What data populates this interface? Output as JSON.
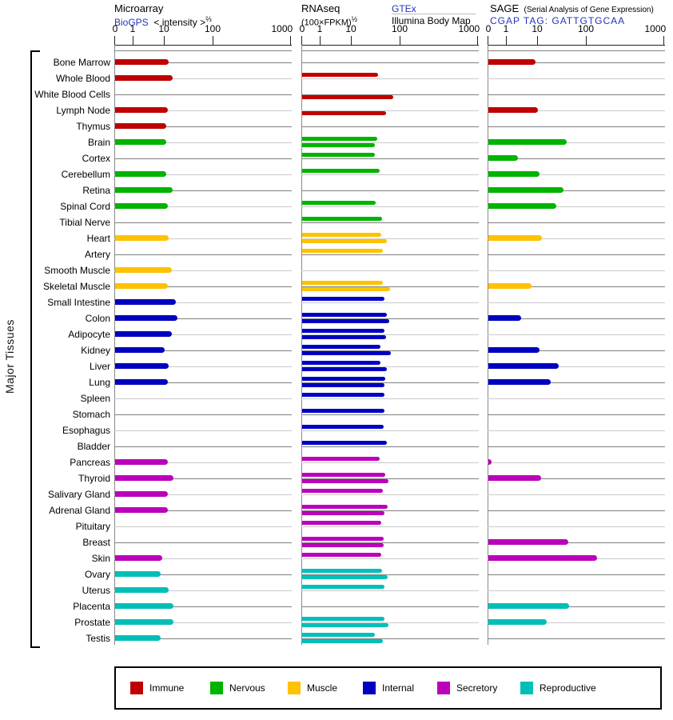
{
  "side_label": "Major Tissues",
  "header": {
    "microarray": {
      "title": "Microarray",
      "link": "BioGPS",
      "unit_prefix": "< intensity >",
      "unit_sup": "⅔"
    },
    "rnaseq": {
      "title": "RNAseq",
      "unit_prefix": "(100×FPKM)",
      "unit_sup": "½",
      "link": "GTEx",
      "sub_source": "Illumina Body Map"
    },
    "sage": {
      "title": "SAGE",
      "subtitle": "(Serial Analysis of Gene Expression)",
      "link": "CGAP TAG: GATTGTGCAA"
    }
  },
  "chart_data": {
    "type": "bar",
    "orientation": "horizontal",
    "axis": {
      "scale": "fifth-root (log-like), shared by all three panels",
      "ticks": [
        0,
        1,
        10,
        100,
        1000
      ],
      "tick_labels": [
        "0",
        "1",
        "10",
        "100",
        "1000"
      ]
    },
    "panels": [
      {
        "name": "Microarray",
        "source": "BioGPS",
        "unit": "< intensity >^(2/3)",
        "value_key": "microarray"
      },
      {
        "name": "RNAseq",
        "unit": "(100×FPKM)^(1/2)",
        "series": [
          {
            "name": "GTEx",
            "value_key": "gtex"
          },
          {
            "name": "Illumina Body Map",
            "value_key": "illumina"
          }
        ]
      },
      {
        "name": "SAGE",
        "source": "CGAP TAG: GATTGTGCAA",
        "value_key": "sage"
      }
    ],
    "category_colors": {
      "Immune": "#c00000",
      "Nervous": "#00b400",
      "Muscle": "#ffc200",
      "Internal": "#0000c0",
      "Secretory": "#bb00bb",
      "Reproductive": "#00bfb8"
    },
    "legend": [
      {
        "label": "Immune",
        "color": "#c00000"
      },
      {
        "label": "Nervous",
        "color": "#00b400"
      },
      {
        "label": "Muscle",
        "color": "#ffc200"
      },
      {
        "label": "Internal",
        "color": "#0000c0"
      },
      {
        "label": "Secretory",
        "color": "#bb00bb"
      },
      {
        "label": "Reproductive",
        "color": "#00bfb8"
      }
    ],
    "tissues": [
      {
        "name": "Bone Marrow",
        "category": "Immune",
        "microarray": 13,
        "gtex": 0,
        "illumina": 0,
        "sage": 9
      },
      {
        "name": "Whole Blood",
        "category": "Immune",
        "microarray": 16,
        "gtex": 40,
        "illumina": 0,
        "sage": 0
      },
      {
        "name": "White Blood Cells",
        "category": "Immune",
        "microarray": 0,
        "gtex": 0,
        "illumina": 75,
        "sage": 0
      },
      {
        "name": "Lymph Node",
        "category": "Immune",
        "microarray": 12,
        "gtex": 0,
        "illumina": 57,
        "sage": 10
      },
      {
        "name": "Thymus",
        "category": "Immune",
        "microarray": 11,
        "gtex": 0,
        "illumina": 0,
        "sage": 0
      },
      {
        "name": "Brain",
        "category": "Nervous",
        "microarray": 11,
        "gtex": 38,
        "illumina": 34,
        "sage": 44
      },
      {
        "name": "Cortex",
        "category": "Nervous",
        "microarray": 0,
        "gtex": 34,
        "illumina": 0,
        "sage": 2.6
      },
      {
        "name": "Cerebellum",
        "category": "Nervous",
        "microarray": 11,
        "gtex": 43,
        "illumina": 0,
        "sage": 11
      },
      {
        "name": "Retina",
        "category": "Nervous",
        "microarray": 16,
        "gtex": 0,
        "illumina": 0,
        "sage": 39
      },
      {
        "name": "Spinal Cord",
        "category": "Nervous",
        "microarray": 12,
        "gtex": 36,
        "illumina": 0,
        "sage": 27
      },
      {
        "name": "Tibial Nerve",
        "category": "Nervous",
        "microarray": 0,
        "gtex": 48,
        "illumina": 0,
        "sage": 0
      },
      {
        "name": "Heart",
        "category": "Muscle",
        "microarray": 13,
        "gtex": 46,
        "illumina": 58,
        "sage": 13
      },
      {
        "name": "Artery",
        "category": "Muscle",
        "microarray": 0,
        "gtex": 49,
        "illumina": 0,
        "sage": 0
      },
      {
        "name": "Smooth Muscle",
        "category": "Muscle",
        "microarray": 15,
        "gtex": 0,
        "illumina": 0,
        "sage": 0
      },
      {
        "name": "Skeletal Muscle",
        "category": "Muscle",
        "microarray": 12,
        "gtex": 49,
        "illumina": 66,
        "sage": 7
      },
      {
        "name": "Small Intestine",
        "category": "Internal",
        "microarray": 19,
        "gtex": 53,
        "illumina": 0,
        "sage": 0
      },
      {
        "name": "Colon",
        "category": "Internal",
        "microarray": 21,
        "gtex": 59,
        "illumina": 65,
        "sage": 3.4
      },
      {
        "name": "Adipocyte",
        "category": "Internal",
        "microarray": 15,
        "gtex": 53,
        "illumina": 57,
        "sage": 0
      },
      {
        "name": "Kidney",
        "category": "Internal",
        "microarray": 10,
        "gtex": 44,
        "illumina": 68,
        "sage": 11
      },
      {
        "name": "Liver",
        "category": "Internal",
        "microarray": 13,
        "gtex": 44,
        "illumina": 59,
        "sage": 31
      },
      {
        "name": "Lung",
        "category": "Internal",
        "microarray": 12,
        "gtex": 55,
        "illumina": 53,
        "sage": 21
      },
      {
        "name": "Spleen",
        "category": "Internal",
        "microarray": 0,
        "gtex": 53,
        "illumina": 0,
        "sage": 0
      },
      {
        "name": "Stomach",
        "category": "Internal",
        "microarray": 0,
        "gtex": 53,
        "illumina": 0,
        "sage": 0
      },
      {
        "name": "Esophagus",
        "category": "Internal",
        "microarray": 0,
        "gtex": 51,
        "illumina": 0,
        "sage": 0
      },
      {
        "name": "Bladder",
        "category": "Internal",
        "microarray": 0,
        "gtex": 59,
        "illumina": 0,
        "sage": 0
      },
      {
        "name": "Pancreas",
        "category": "Secretory",
        "microarray": 12,
        "gtex": 43,
        "illumina": 0,
        "sage": 0.15
      },
      {
        "name": "Thyroid",
        "category": "Secretory",
        "microarray": 17,
        "gtex": 55,
        "illumina": 63,
        "sage": 12
      },
      {
        "name": "Salivary Gland",
        "category": "Secretory",
        "microarray": 12,
        "gtex": 50,
        "illumina": 0,
        "sage": 0
      },
      {
        "name": "Adrenal Gland",
        "category": "Secretory",
        "microarray": 12,
        "gtex": 61,
        "illumina": 53,
        "sage": 0
      },
      {
        "name": "Pituitary",
        "category": "Secretory",
        "microarray": 0,
        "gtex": 46,
        "illumina": 0,
        "sage": 0
      },
      {
        "name": "Breast",
        "category": "Secretory",
        "microarray": 0,
        "gtex": 51,
        "illumina": 51,
        "sage": 47
      },
      {
        "name": "Skin",
        "category": "Secretory",
        "microarray": 9,
        "gtex": 46,
        "illumina": 0,
        "sage": 145
      },
      {
        "name": "Ovary",
        "category": "Reproductive",
        "microarray": 8,
        "gtex": 48,
        "illumina": 61,
        "sage": 0
      },
      {
        "name": "Uterus",
        "category": "Reproductive",
        "microarray": 13,
        "gtex": 53,
        "illumina": 0,
        "sage": 0
      },
      {
        "name": "Placenta",
        "category": "Reproductive",
        "microarray": 17,
        "gtex": 0,
        "illumina": 0,
        "sage": 50
      },
      {
        "name": "Prostate",
        "category": "Reproductive",
        "microarray": 17,
        "gtex": 53,
        "illumina": 62,
        "sage": 17
      },
      {
        "name": "Testis",
        "category": "Reproductive",
        "microarray": 8,
        "gtex": 34,
        "illumina": 49,
        "sage": 0
      }
    ]
  }
}
